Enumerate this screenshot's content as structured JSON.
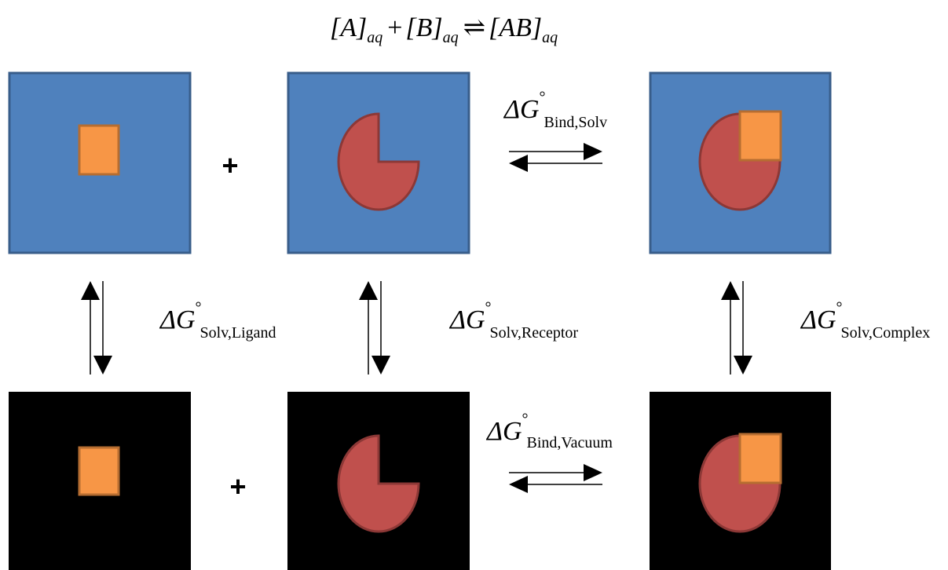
{
  "equation": {
    "a": "[A]",
    "a_sub": "aq",
    "plus": "+",
    "b": "[B]",
    "b_sub": "aq",
    "arrow": "⇌",
    "ab": "[AB]",
    "ab_sub": "aq"
  },
  "plus_signs": {
    "top": "+",
    "bottom": "+"
  },
  "labels": [
    {
      "symbol": "ΔG",
      "degree": "°",
      "subscript": "Bind,Solv"
    },
    {
      "symbol": "ΔG",
      "degree": "°",
      "subscript": "Solv,Ligand"
    },
    {
      "symbol": "ΔG",
      "degree": "°",
      "subscript": "Solv,Receptor"
    },
    {
      "symbol": "ΔG",
      "degree": "°",
      "subscript": "Solv,Complex"
    },
    {
      "symbol": "ΔG",
      "degree": "°",
      "subscript": "Bind,Vacuum"
    }
  ]
}
